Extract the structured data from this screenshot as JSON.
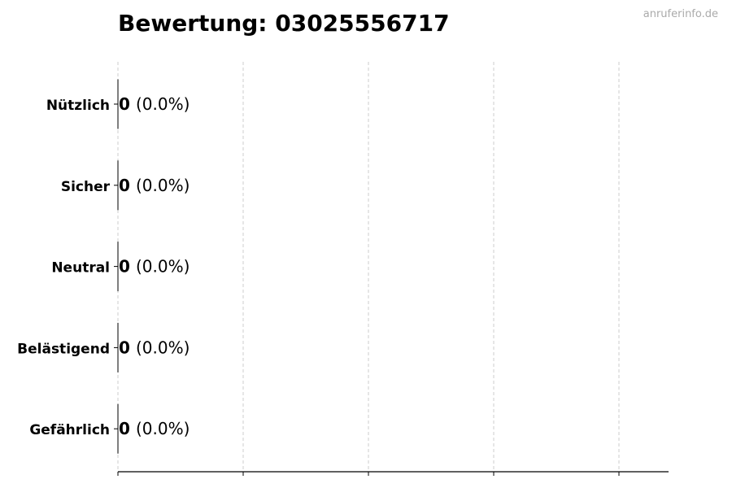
{
  "title": "Bewertung: 03025556717",
  "watermark": "anruferinfo.de",
  "chart_data": {
    "type": "bar",
    "orientation": "horizontal",
    "title": "Bewertung: 03025556717",
    "categories": [
      "Nützlich",
      "Sicher",
      "Neutral",
      "Belästigend",
      "Gefährlich"
    ],
    "values": [
      0,
      0,
      0,
      0,
      0
    ],
    "percent_labels": [
      "(0.0%)",
      "(0.0%)",
      "(0.0%)",
      "(0.0%)",
      "(0.0%)"
    ],
    "xlabel": "",
    "ylabel": "",
    "x_tick_labels": false,
    "grid": "vertical dashed",
    "legend": "none"
  }
}
